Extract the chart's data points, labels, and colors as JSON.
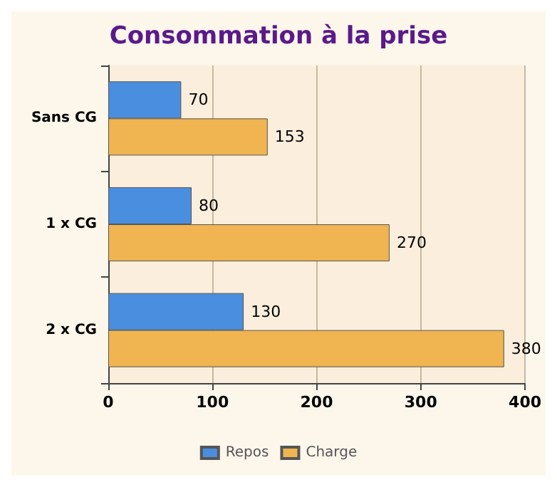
{
  "chart_data": {
    "type": "bar",
    "orientation": "horizontal",
    "title": "Consommation à la prise",
    "categories": [
      "Sans CG",
      "1 x CG",
      "2 x CG"
    ],
    "series": [
      {
        "name": "Repos",
        "color": "#4a8ee0",
        "values": [
          70,
          80,
          130
        ]
      },
      {
        "name": "Charge",
        "color": "#f0b450",
        "values": [
          153,
          270,
          380
        ]
      }
    ],
    "xlim": [
      0,
      400
    ],
    "xticks": [
      0,
      100,
      200,
      300,
      400
    ],
    "grid": "x",
    "legend": "bottom",
    "data_labels": true
  }
}
